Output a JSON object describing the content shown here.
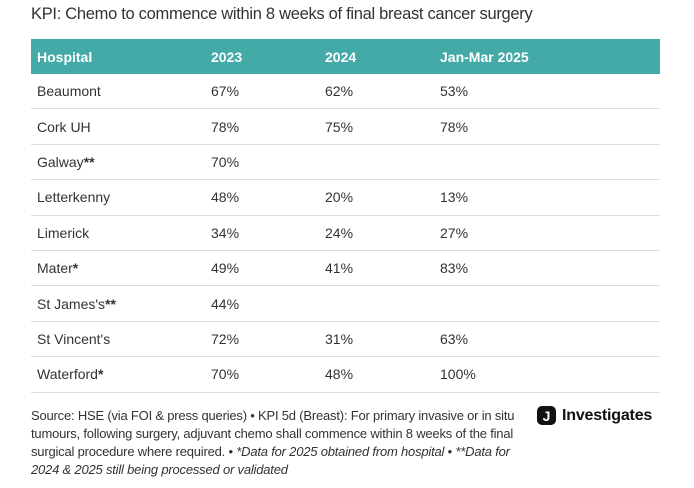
{
  "title": "KPI: Chemo to commence within 8 weeks of final breast cancer surgery",
  "colors": {
    "header_bg": "#43aaa8",
    "header_text": "#ffffff",
    "row_border": "#dddddd"
  },
  "table": {
    "columns": [
      "Hospital",
      "2023",
      "2024",
      "Jan-Mar 2025"
    ],
    "rows": [
      {
        "hospital": "Beaumont",
        "marker": "",
        "y2023": "67%",
        "y2024": "62%",
        "q2025": "53%"
      },
      {
        "hospital": "Cork UH",
        "marker": "",
        "y2023": "78%",
        "y2024": "75%",
        "q2025": "78%"
      },
      {
        "hospital": "Galway",
        "marker": "**",
        "y2023": "70%",
        "y2024": "",
        "q2025": ""
      },
      {
        "hospital": "Letterkenny",
        "marker": "",
        "y2023": "48%",
        "y2024": "20%",
        "q2025": "13%"
      },
      {
        "hospital": "Limerick",
        "marker": "",
        "y2023": "34%",
        "y2024": "24%",
        "q2025": "27%"
      },
      {
        "hospital": "Mater",
        "marker": "*",
        "y2023": "49%",
        "y2024": "41%",
        "q2025": "83%"
      },
      {
        "hospital": "St James's",
        "marker": "**",
        "y2023": "44%",
        "y2024": "",
        "q2025": ""
      },
      {
        "hospital": "St Vincent's",
        "marker": "",
        "y2023": "72%",
        "y2024": "31%",
        "q2025": "63%"
      },
      {
        "hospital": "Waterford",
        "marker": "*",
        "y2023": "70%",
        "y2024": "48%",
        "q2025": "100%"
      }
    ]
  },
  "footer": {
    "source": "Source: HSE (via FOI & press queries) • KPI 5d (Breast): For primary invasive or in situ tumours, following surgery, adjuvant chemo shall commence within 8 weeks of the final surgical procedure where required. • ",
    "note1": "*Data for 2025 obtained from hospital",
    "sep": " • ",
    "note2": "**Data for 2024 & 2025 still being processed or validated"
  },
  "logo": {
    "mark": "J",
    "text": "Investigates"
  }
}
